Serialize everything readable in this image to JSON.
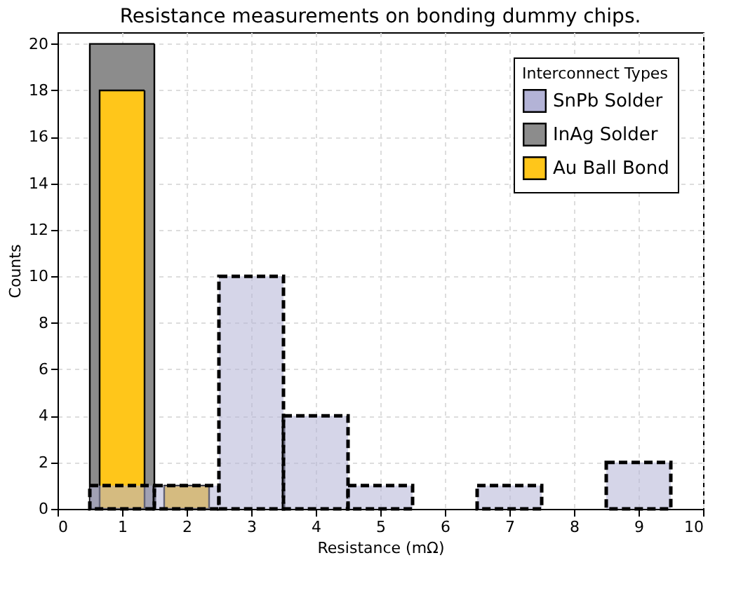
{
  "chart_data": {
    "type": "histogram",
    "title": "Resistance measurements on bonding dummy chips.",
    "xlabel": "Resistance (mΩ)",
    "ylabel": "Counts",
    "legend_title": "Interconnect Types",
    "bins": [
      0.5,
      1.5,
      2.5,
      3.5,
      4.5,
      5.5,
      6.5,
      7.5,
      8.5,
      9.5
    ],
    "series": [
      {
        "name": "SnPb Solder",
        "color": "#b3b3d6",
        "line_style": "dashed",
        "values": [
          1,
          1,
          10,
          4,
          1,
          0,
          1,
          0,
          2
        ]
      },
      {
        "name": "InAg Solder",
        "color": "#8c8c8c",
        "line_style": "solid",
        "values": [
          20,
          0,
          0,
          0,
          0,
          0,
          0,
          0,
          0
        ]
      },
      {
        "name": "Au Ball Bond",
        "color": "#ffc61a",
        "line_style": "solid",
        "values": [
          18,
          1,
          0,
          0,
          0,
          0,
          0,
          0,
          0
        ]
      }
    ],
    "xlim": [
      0,
      10
    ],
    "xticks": [
      0,
      1,
      2,
      3,
      4,
      5,
      6,
      7,
      8,
      9,
      10
    ],
    "ylim": [
      0,
      20.5
    ],
    "yticks": [
      0,
      2,
      4,
      6,
      8,
      10,
      12,
      14,
      16,
      18,
      20
    ],
    "grid": true,
    "legend": "top right"
  }
}
